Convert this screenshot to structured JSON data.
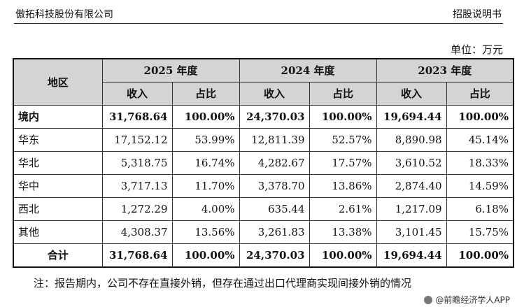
{
  "header": {
    "company": "傲拓科技股份有限公司",
    "doc_type": "招股说明书"
  },
  "unit_label": "单位：万元",
  "table": {
    "region_header": "地区",
    "years": [
      "2025 年度",
      "2024 年度",
      "2023 年度"
    ],
    "sub_headers": [
      "收入",
      "占比"
    ],
    "rows": [
      {
        "region": "境内",
        "cells": [
          "31,768.64",
          "100.00%",
          "24,370.03",
          "100.00%",
          "19,694.44",
          "100.00%"
        ],
        "bold": true
      },
      {
        "region": "华东",
        "cells": [
          "17,152.12",
          "53.99%",
          "12,811.39",
          "52.57%",
          "8,890.98",
          "45.14%"
        ]
      },
      {
        "region": "华北",
        "cells": [
          "5,318.75",
          "16.74%",
          "4,282.67",
          "17.57%",
          "3,610.52",
          "18.33%"
        ]
      },
      {
        "region": "华中",
        "cells": [
          "3,717.13",
          "11.70%",
          "3,378.70",
          "13.86%",
          "2,874.40",
          "14.59%"
        ]
      },
      {
        "region": "西北",
        "cells": [
          "1,272.29",
          "4.00%",
          "635.44",
          "2.61%",
          "1,217.09",
          "6.18%"
        ]
      },
      {
        "region": "其他",
        "cells": [
          "4,308.37",
          "13.56%",
          "3,261.83",
          "13.38%",
          "3,101.45",
          "15.75%"
        ]
      },
      {
        "region": "合计",
        "cells": [
          "31,768.64",
          "100.00%",
          "24,370.03",
          "100.00%",
          "19,694.44",
          "100.00%"
        ],
        "bold": true,
        "total": true
      }
    ]
  },
  "note": "注：报告期内，公司不存在直接外销，但存在通过出口代理商实现间接外销的情况",
  "credit": {
    "text": "@前瞻经济学人APP",
    "icon": "app-logo-icon"
  }
}
